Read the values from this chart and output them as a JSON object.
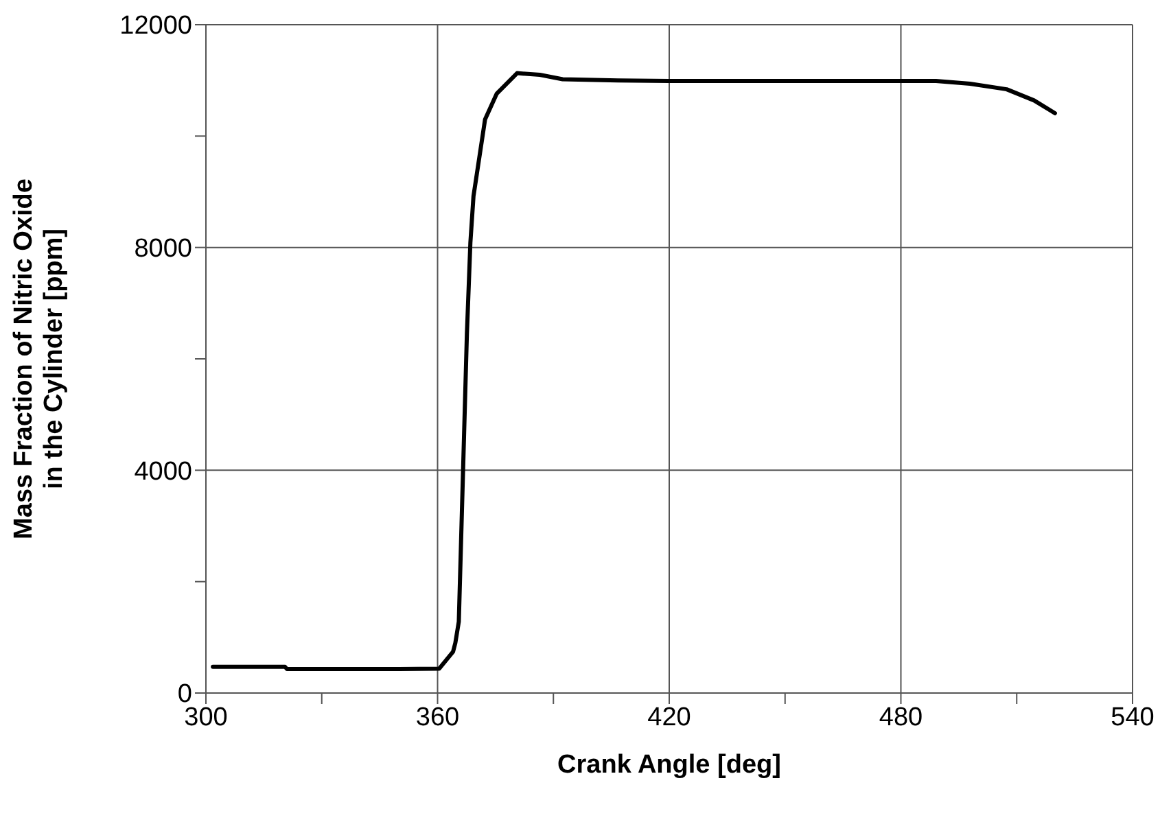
{
  "chart_data": {
    "type": "line",
    "xlabel": "Crank Angle [deg]",
    "ylabel": "Mass Fraction of Nitric Oxide\nin the Cylinder [ppm]",
    "xlim": [
      300,
      540
    ],
    "ylim": [
      0,
      12000
    ],
    "xticks": [
      300,
      {
        "value": 330,
        "label": null
      },
      360,
      {
        "value": 390,
        "label": null
      },
      420,
      {
        "value": 450,
        "label": null
      },
      480,
      {
        "value": 510,
        "label": null
      },
      540
    ],
    "yticks": [
      0,
      {
        "value": 2000,
        "label": null
      },
      4000,
      {
        "value": 6000,
        "label": null
      },
      8000,
      {
        "value": 10000,
        "label": null
      },
      12000
    ],
    "grid": true,
    "marker": "none",
    "line_style": "solid",
    "series": [
      {
        "color": "#000000",
        "x": [
          301.8,
          310,
          320.5,
          321,
          330,
          340,
          350,
          360.4,
          364,
          364.6,
          365.5,
          366.6,
          367.6,
          368.5,
          369.3,
          372.3,
          375.3,
          380.6,
          386.5,
          392.4,
          406.7,
          420,
          450,
          489.1,
          497.9,
          507.4,
          514.5,
          519.9
        ],
        "values": [
          470,
          470,
          470,
          430,
          430,
          430,
          430,
          436,
          740,
          900,
          1280,
          3990,
          6460,
          8090,
          8920,
          10300,
          10760,
          11130,
          11100,
          11020,
          11000,
          10990,
          10990,
          10990,
          10940,
          10840,
          10640,
          10410
        ]
      }
    ]
  }
}
